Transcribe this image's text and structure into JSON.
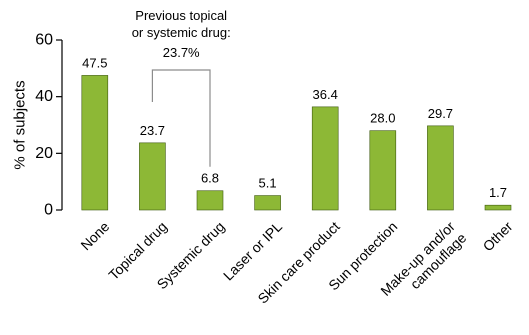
{
  "chart_data": {
    "type": "bar",
    "categories": [
      "None",
      "Topical drug",
      "Systemic drug",
      "Laser or IPL",
      "Skin care product",
      "Sun protection",
      "Make-up and/or camouflage",
      "Other"
    ],
    "category_lines": [
      [
        "None"
      ],
      [
        "Topical drug"
      ],
      [
        "Systemic drug"
      ],
      [
        "Laser or IPL"
      ],
      [
        "Skin care product"
      ],
      [
        "Sun protection"
      ],
      [
        "Make-up and/or",
        "camouflage"
      ],
      [
        "Other"
      ]
    ],
    "values": [
      47.5,
      23.7,
      6.8,
      5.1,
      36.4,
      28.0,
      29.7,
      1.7
    ],
    "value_labels": [
      "47.5",
      "23.7",
      "6.8",
      "5.1",
      "36.4",
      "28.0",
      "29.7",
      "1.7"
    ],
    "ylabel": "% of subjects",
    "ylim": [
      0,
      60
    ],
    "yticks": [
      0,
      20,
      40,
      60
    ],
    "grid": false,
    "legend": "none",
    "bar_color": "#8db836",
    "bar_outline_color": "#3f5a10",
    "annotation": {
      "lines": [
        "Previous topical",
        "or systemic drug:",
        "23.7%"
      ],
      "spans_categories": [
        "Topical drug",
        "Systemic drug"
      ]
    }
  }
}
